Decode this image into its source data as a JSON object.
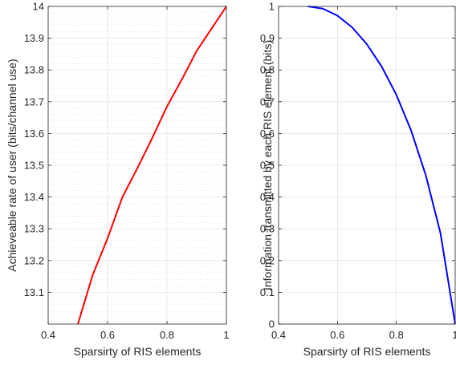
{
  "chart_data": [
    {
      "type": "line",
      "xlabel": "Sparsirty of RIS elements",
      "ylabel": "Achieveable rate of user (bits/channel use)",
      "xlim": [
        0.4,
        1
      ],
      "ylim": [
        13.0,
        14.0
      ],
      "xticks": [
        "0.4",
        "0.6",
        "0.8",
        "1"
      ],
      "yticks": [
        "13.1",
        "13.2",
        "13.3",
        "13.4",
        "13.5",
        "13.6",
        "13.7",
        "13.8",
        "13.9",
        "14"
      ],
      "grid": true,
      "minor_grid": true,
      "series": [
        {
          "color": "#ff0000",
          "x": [
            0.5,
            0.55,
            0.6,
            0.65,
            0.7,
            0.75,
            0.8,
            0.85,
            0.9,
            0.95,
            1.0
          ],
          "y": [
            13.0,
            13.155,
            13.27,
            13.4,
            13.49,
            13.585,
            13.685,
            13.77,
            13.86,
            13.93,
            14.0
          ]
        }
      ]
    },
    {
      "type": "line",
      "xlabel": "Sparsirty of RIS elements",
      "ylabel": "Information transmitted by each RIS element (bits)",
      "xlim": [
        0.4,
        1
      ],
      "ylim": [
        0,
        1
      ],
      "xticks": [
        "0.4",
        "0.6",
        "0.8",
        "1"
      ],
      "yticks": [
        "0",
        "0.1",
        "0.2",
        "0.3",
        "0.4",
        "0.5",
        "0.6",
        "0.7",
        "0.8",
        "0.9",
        "1"
      ],
      "grid": true,
      "minor_grid": false,
      "series": [
        {
          "color": "#0000ff",
          "x": [
            0.5,
            0.55,
            0.6,
            0.65,
            0.7,
            0.75,
            0.8,
            0.85,
            0.9,
            0.95,
            1.0
          ],
          "y": [
            1.0,
            0.993,
            0.971,
            0.934,
            0.881,
            0.811,
            0.722,
            0.61,
            0.469,
            0.286,
            0.0
          ]
        }
      ]
    }
  ]
}
